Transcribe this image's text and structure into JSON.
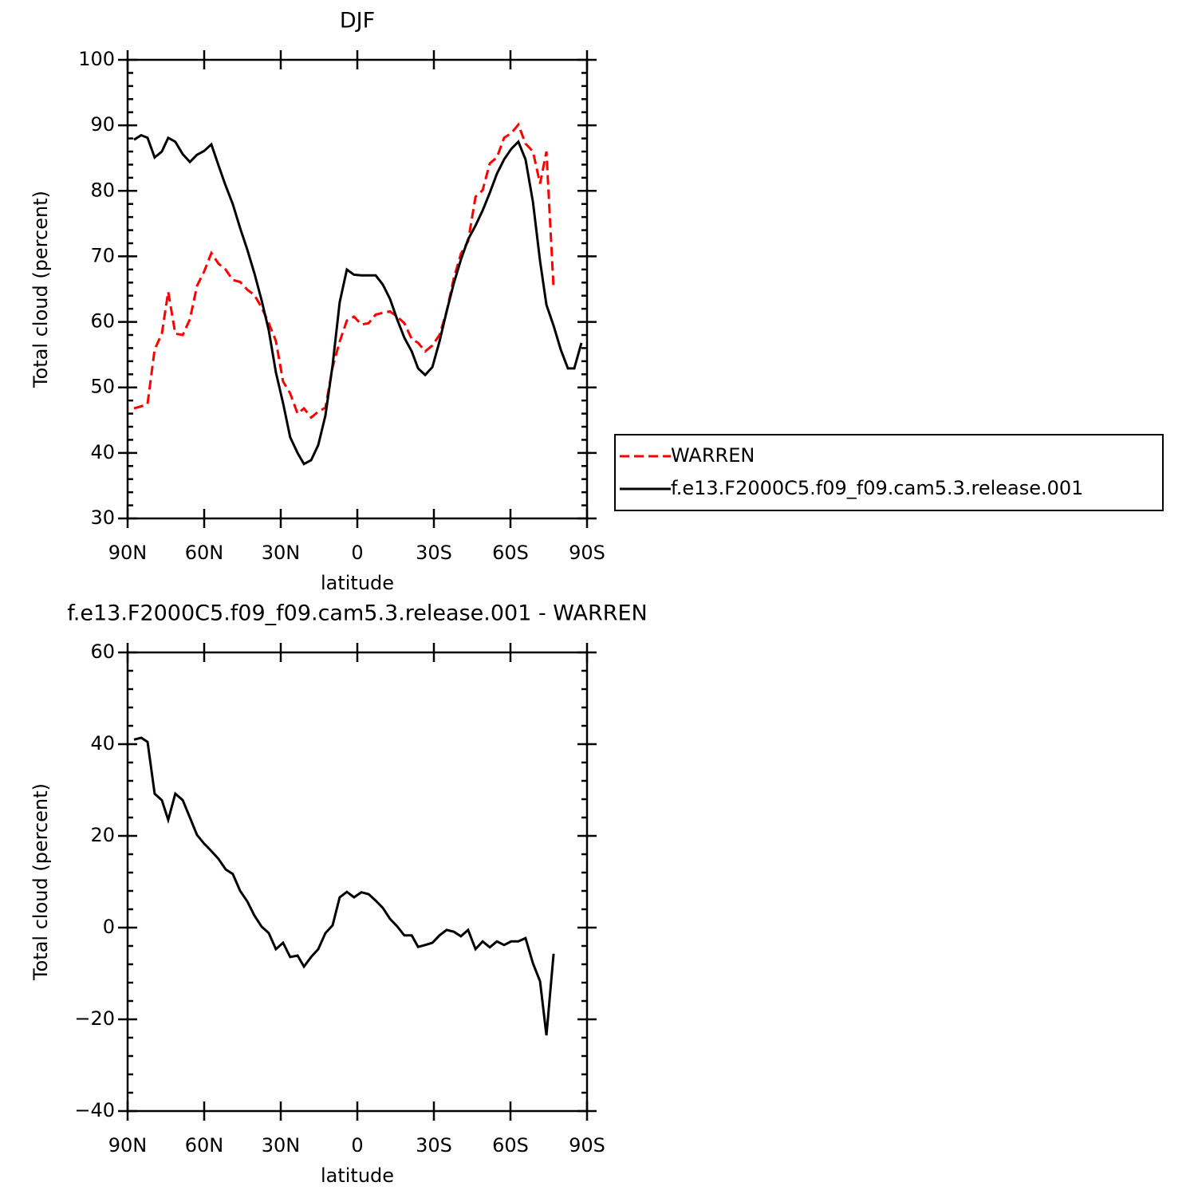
{
  "chart_data": [
    {
      "type": "line",
      "title": "DJF",
      "x_label": "latitude",
      "y_label": "Total cloud (percent)",
      "x": [
        87.5,
        84.7,
        82.2,
        79.4,
        76.6,
        74.1,
        71.3,
        68.4,
        65.6,
        62.8,
        60,
        57.2,
        54.4,
        51.6,
        48.8,
        45.9,
        43.1,
        40.3,
        37.5,
        34.7,
        31.9,
        29.1,
        26.3,
        23.4,
        20.9,
        18.1,
        15.3,
        12.5,
        9.7,
        6.9,
        4.1,
        1.3,
        -1.6,
        -4.4,
        -7.2,
        -10,
        -12.8,
        -15.6,
        -18.4,
        -21.3,
        -23.8,
        -26.6,
        -29.4,
        -32.2,
        -35,
        -37.8,
        -40.6,
        -43.4,
        -46.3,
        -49.1,
        -51.9,
        -54.7,
        -57.5,
        -60.3,
        -63.1,
        -65.9,
        -68.8,
        -71.6,
        -74.1,
        -76.9,
        -79.7,
        -82.5,
        -85,
        -87.8
      ],
      "series": [
        {
          "name": "WARREN",
          "color": "#ff0000",
          "line_style": "dashed",
          "values": [
            46.8,
            47.1,
            47.5,
            55.8,
            58.2,
            64.6,
            58.2,
            58,
            60.4,
            65.5,
            67.7,
            70.5,
            68.9,
            68,
            66.4,
            66.1,
            64.9,
            64.1,
            62.2,
            59.8,
            57.1,
            50.9,
            49.1,
            46,
            46.8,
            45.4,
            46.3,
            46.9,
            53.1,
            57,
            60.2,
            60.8,
            59.6,
            59.8,
            61.1,
            61.4,
            61.6,
            60.8,
            59.8,
            57.4,
            56.8,
            55.5,
            56.4,
            58,
            61.6,
            66.7,
            70.4,
            72.3,
            79.1,
            80.1,
            84.2,
            85.1,
            88.1,
            88.8,
            90.1,
            87.2,
            86,
            81.1,
            86,
            65,
            null,
            null,
            null,
            null
          ]
        },
        {
          "name": "f.e13.F2000C5.f09_f09.cam5.3.release.001",
          "color": "#000000",
          "line_style": "solid",
          "values": [
            87.8,
            88.5,
            88.1,
            85.1,
            86,
            88.1,
            87.5,
            85.6,
            84.4,
            85.5,
            86.1,
            87.1,
            83.9,
            80.8,
            78,
            74.3,
            71,
            67.4,
            63.3,
            58.7,
            52.3,
            47.6,
            42.4,
            40,
            38.3,
            38.9,
            41.2,
            45.7,
            53.4,
            63,
            68,
            67.2,
            67.1,
            67.1,
            67.1,
            65.7,
            63.5,
            60.4,
            57.6,
            55.5,
            52.9,
            51.9,
            53.1,
            57,
            61.6,
            65.9,
            69.5,
            72.6,
            74.7,
            77,
            79.7,
            82.6,
            84.8,
            86.4,
            87.5,
            84.8,
            78.3,
            69.3,
            62.6,
            59.4,
            55.8,
            52.9,
            52.9,
            56.8
          ]
        }
      ],
      "xlim": [
        90,
        -90
      ],
      "xticks": [
        {
          "value": 90,
          "label": "90N"
        },
        {
          "value": 60,
          "label": "60N"
        },
        {
          "value": 30,
          "label": "30N"
        },
        0,
        {
          "value": -30,
          "label": "30S"
        },
        {
          "value": -60,
          "label": "60S"
        },
        {
          "value": -90,
          "label": "90S"
        }
      ],
      "ylim": [
        30,
        100
      ],
      "yticks": [
        30,
        40,
        50,
        60,
        70,
        80,
        90,
        100
      ]
    },
    {
      "type": "line",
      "title": "f.e13.F2000C5.f09_f09.cam5.3.release.001 - WARREN",
      "x_label": "latitude",
      "y_label": "Total cloud (percent)",
      "x": [
        87.5,
        84.7,
        82.2,
        79.4,
        76.6,
        74.1,
        71.3,
        68.4,
        65.6,
        62.8,
        60,
        57.2,
        54.4,
        51.6,
        48.8,
        45.9,
        43.1,
        40.3,
        37.5,
        34.7,
        31.9,
        29.1,
        26.3,
        23.4,
        20.9,
        18.1,
        15.3,
        12.5,
        9.7,
        6.9,
        4.1,
        1.3,
        -1.6,
        -4.4,
        -7.2,
        -10,
        -12.8,
        -15.6,
        -18.4,
        -21.3,
        -23.8,
        -26.6,
        -29.4,
        -32.2,
        -35,
        -37.8,
        -40.6,
        -43.4,
        -46.3,
        -49.1,
        -51.9,
        -54.7,
        -57.5,
        -60.3,
        -63.1,
        -65.9,
        -68.8,
        -71.6,
        -74.1,
        -76.9,
        -79.7,
        -82.5,
        -85,
        -87.8
      ],
      "series": [
        {
          "color": "#000000",
          "line_style": "solid",
          "values": [
            41,
            41.4,
            40.5,
            29.2,
            27.8,
            23.5,
            29.2,
            27.8,
            24,
            20.2,
            18.3,
            16.7,
            15,
            12.7,
            11.7,
            8,
            5.7,
            2.6,
            0.2,
            -1.2,
            -4.7,
            -3.3,
            -6.4,
            -6.1,
            -8.5,
            -6.4,
            -4.7,
            -1.2,
            0.5,
            6.6,
            7.8,
            6.6,
            7.7,
            7.3,
            5.9,
            4.3,
            1.9,
            0.3,
            -1.7,
            -1.7,
            -4.2,
            -3.8,
            -3.3,
            -1.7,
            -0.5,
            -0.9,
            -1.9,
            -0.5,
            -4.7,
            -3,
            -4.3,
            -3,
            -3.8,
            -3,
            -3,
            -2.3,
            -7.8,
            -11.7,
            -23.5,
            -5.7,
            null,
            null,
            null,
            null
          ]
        }
      ],
      "xlim": [
        90,
        -90
      ],
      "xticks": [
        {
          "value": 90,
          "label": "90N"
        },
        {
          "value": 60,
          "label": "60N"
        },
        {
          "value": 30,
          "label": "30N"
        },
        0,
        {
          "value": -30,
          "label": "30S"
        },
        {
          "value": -60,
          "label": "60S"
        },
        {
          "value": -90,
          "label": "90S"
        }
      ],
      "ylim": [
        -40,
        60
      ],
      "yticks": [
        {
          "value": -40,
          "label": "−40"
        },
        {
          "value": -20,
          "label": "−20"
        },
        0,
        20,
        40,
        60
      ]
    }
  ]
}
